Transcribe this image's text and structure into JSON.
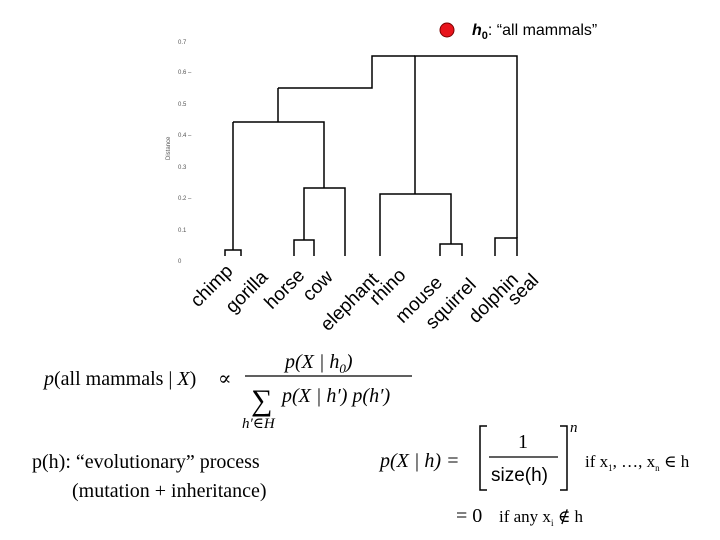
{
  "hypothesis": {
    "marker_color": "#e8141c",
    "label_main": "h",
    "label_sub": "0",
    "label_rest": ": “all mammals”"
  },
  "axis": {
    "label": "Distance",
    "ticks": [
      "0.7",
      "0.6 –",
      "0.5",
      "0.4 –",
      "0.3",
      "0.2 –",
      "0.1",
      "0"
    ]
  },
  "leaves": [
    "chimp",
    "gorilla",
    "horse",
    "cow",
    "elephant",
    "rhino",
    "mouse",
    "squirrel",
    "dolphin",
    "seal"
  ],
  "posterior": {
    "lhs_p": "p",
    "lhs_arg": "(all mammals | ",
    "lhs_X": "X",
    "lhs_close": ")",
    "propto": "∝",
    "num": "p(X | h",
    "num_sub": "0",
    "num_close": ")",
    "sum": "∑",
    "den": "p(X | h′) p(h′)",
    "sum_index": "h′∈H"
  },
  "prior": {
    "line1": "p(h): “evolutionary” process",
    "line2": "(mutation + inheritance)"
  },
  "likelihood": {
    "lhs": "p(X | h) =",
    "numerator": "1",
    "denominator": "size(h)",
    "exponent": "n",
    "condition1": "if  x",
    "condition1_sub1": "1",
    "condition1_mid": ", …, x",
    "condition1_sub2": "n",
    "condition1_end": " ∈ h",
    "line2_eq": "= 0",
    "condition2": "if any  x",
    "condition2_sub": "i",
    "condition2_end": " ∉ h"
  }
}
